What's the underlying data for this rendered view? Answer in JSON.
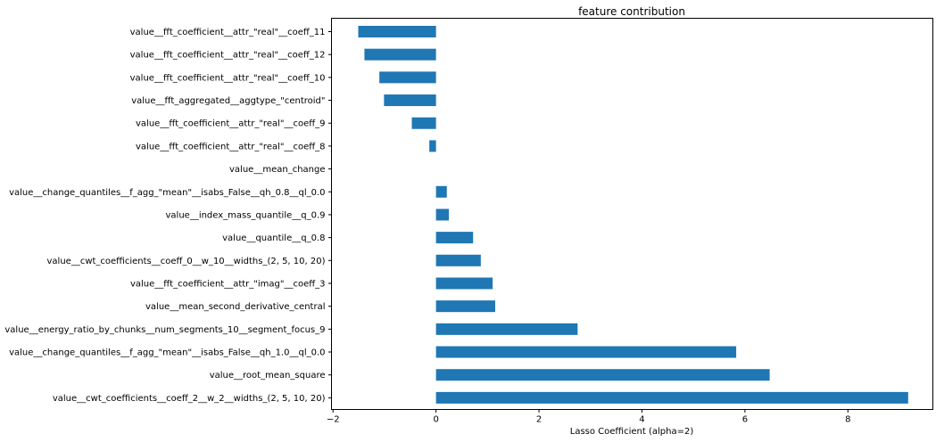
{
  "chart_data": {
    "type": "bar",
    "orientation": "horizontal",
    "title": "feature contribution",
    "xlabel": "Lasso Coefficient (alpha=2)",
    "ylabel": "",
    "xlim": [
      -2.03,
      9.65
    ],
    "xticks": [
      -2,
      0,
      2,
      4,
      6,
      8
    ],
    "grid": false,
    "color": "#1f77b4",
    "categories": [
      "value__fft_coefficient__attr_\"real\"__coeff_11",
      "value__fft_coefficient__attr_\"real\"__coeff_12",
      "value__fft_coefficient__attr_\"real\"__coeff_10",
      "value__fft_aggregated__aggtype_\"centroid\"",
      "value__fft_coefficient__attr_\"real\"__coeff_9",
      "value__fft_coefficient__attr_\"real\"__coeff_8",
      "value__mean_change",
      "value__change_quantiles__f_agg_\"mean\"__isabs_False__qh_0.8__ql_0.0",
      "value__index_mass_quantile__q_0.9",
      "value__quantile__q_0.8",
      "value__cwt_coefficients__coeff_0__w_10__widths_(2, 5, 10, 20)",
      "value__fft_coefficient__attr_\"imag\"__coeff_3",
      "value__mean_second_derivative_central",
      "value__energy_ratio_by_chunks__num_segments_10__segment_focus_9",
      "value__change_quantiles__f_agg_\"mean\"__isabs_False__qh_1.0__ql_0.0",
      "value__root_mean_square",
      "value__cwt_coefficients__coeff_2__w_2__widths_(2, 5, 10, 20)"
    ],
    "values": [
      -1.51,
      -1.39,
      -1.1,
      -1.01,
      -0.47,
      -0.13,
      0.0,
      0.21,
      0.25,
      0.72,
      0.87,
      1.1,
      1.15,
      2.75,
      5.83,
      6.48,
      9.17
    ]
  }
}
